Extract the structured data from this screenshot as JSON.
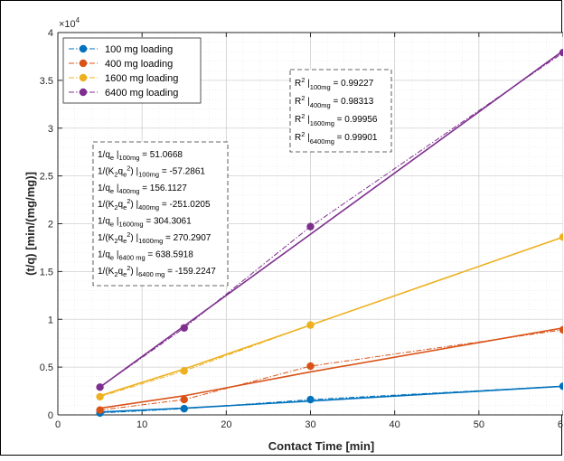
{
  "chart_data": {
    "type": "line",
    "xlabel": "Contact Time [min]",
    "ylabel": "(t/q) [min/(mg/mg)]",
    "y_exponent_label": "×10",
    "y_exponent_power": "4",
    "xlim": [
      0,
      60
    ],
    "ylim": [
      0,
      4
    ],
    "xticks": [
      0,
      10,
      20,
      30,
      40,
      50,
      60
    ],
    "yticks": [
      0,
      0.5,
      1,
      1.5,
      2,
      2.5,
      3,
      3.5,
      4
    ],
    "ytick_labels": [
      "0",
      "0.5",
      "1",
      "1.5",
      "2",
      "2.5",
      "3",
      "3.5",
      "4"
    ],
    "grid": true,
    "minor_grid": true,
    "legend_position": "top-left",
    "x": [
      5,
      15,
      30,
      60
    ],
    "series": [
      {
        "name": "100 mg loading",
        "color": "#0072BD",
        "values": [
          0.02,
          0.065,
          0.16,
          0.3
        ],
        "fit": [
          0.03,
          0.07,
          0.145,
          0.3
        ]
      },
      {
        "name": "400 mg loading",
        "color": "#D95319",
        "values": [
          0.05,
          0.16,
          0.51,
          0.89
        ],
        "fit": [
          0.07,
          0.2,
          0.45,
          0.91
        ]
      },
      {
        "name": "1600 mg loading",
        "color": "#EDB120",
        "values": [
          0.19,
          0.46,
          0.94,
          1.86
        ],
        "fit": [
          0.2,
          0.48,
          0.94,
          1.86
        ]
      },
      {
        "name": "6400 mg loading",
        "color": "#7E2F8E",
        "values": [
          0.29,
          0.91,
          1.97,
          3.79
        ],
        "fit": [
          0.29,
          0.93,
          1.89,
          3.81
        ]
      }
    ],
    "annotations": {
      "r2": [
        {
          "prefix": "R",
          "sup": "2",
          "sub": "100mg",
          "value": "= 0.99227"
        },
        {
          "prefix": "R",
          "sup": "2",
          "sub": "400mg",
          "value": "= 0.98313"
        },
        {
          "prefix": "R",
          "sup": "2",
          "sub": "1600mg",
          "value": "= 0.99956"
        },
        {
          "prefix": "R",
          "sup": "2",
          "sub": "6400mg",
          "value": "= 0.99901"
        }
      ],
      "params": [
        {
          "kind": "q",
          "sub": "100mg",
          "value": "= 51.0668"
        },
        {
          "kind": "k",
          "sub": "100mg",
          "value": "= -57.2861"
        },
        {
          "kind": "q",
          "sub": "400mg",
          "value": "= 156.1127"
        },
        {
          "kind": "k",
          "sub": "400mg",
          "value": "= -251.0205"
        },
        {
          "kind": "q",
          "sub": "1600mg",
          "value": "= 304.3061"
        },
        {
          "kind": "k",
          "sub": "1600mg",
          "value": "= 270.2907"
        },
        {
          "kind": "q",
          "sub": "6400 mg",
          "value": "= 638.5918"
        },
        {
          "kind": "k",
          "sub": "6400 mg",
          "value": "= -159.2247"
        }
      ]
    }
  }
}
